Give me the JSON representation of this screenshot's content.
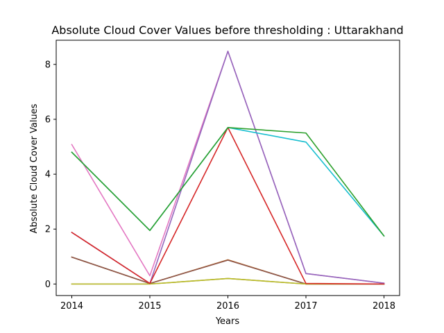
{
  "chart_data": {
    "type": "line",
    "title": "Absolute Cloud Cover Values before thresholding : Uttarakhand",
    "xlabel": "Years",
    "ylabel": "Absolute Cloud Cover Values",
    "x": [
      2014,
      2015,
      2016,
      2017,
      2018
    ],
    "xticks": [
      "2014",
      "2015",
      "2016",
      "2017",
      "2018"
    ],
    "yticks": [
      0,
      2,
      4,
      6,
      8
    ],
    "xlim": [
      2013.8,
      2018.2
    ],
    "ylim": [
      -0.42,
      8.88
    ],
    "grid": false,
    "legend": "none",
    "series": [
      {
        "color": "#1f77b4",
        "values": [
          0.98,
          0.02,
          0.88,
          0.0,
          0.0
        ]
      },
      {
        "color": "#ff7f0e",
        "values": [
          0.98,
          0.02,
          0.88,
          0.0,
          0.0
        ]
      },
      {
        "color": "#8c564b",
        "values": [
          0.98,
          0.02,
          0.87,
          0.0,
          0.0
        ]
      },
      {
        "color": "#7f7f7f",
        "values": [
          0.0,
          0.0,
          0.2,
          0.0,
          0.0
        ]
      },
      {
        "color": "#bcbd22",
        "values": [
          0.0,
          0.0,
          0.2,
          0.0,
          0.0
        ]
      },
      {
        "color": "#e377c2",
        "values": [
          5.08,
          0.3,
          8.48,
          0.38,
          0.03
        ]
      },
      {
        "color": "#9467bd",
        "values": [
          1.88,
          0.02,
          8.48,
          0.38,
          0.03
        ]
      },
      {
        "color": "#d62728",
        "values": [
          1.88,
          0.02,
          5.7,
          0.02,
          0.0
        ]
      },
      {
        "color": "#17becf",
        "values": [
          4.8,
          1.95,
          5.7,
          5.17,
          1.75
        ]
      },
      {
        "color": "#2ca02c",
        "values": [
          4.8,
          1.95,
          5.7,
          5.5,
          1.75
        ]
      }
    ]
  }
}
